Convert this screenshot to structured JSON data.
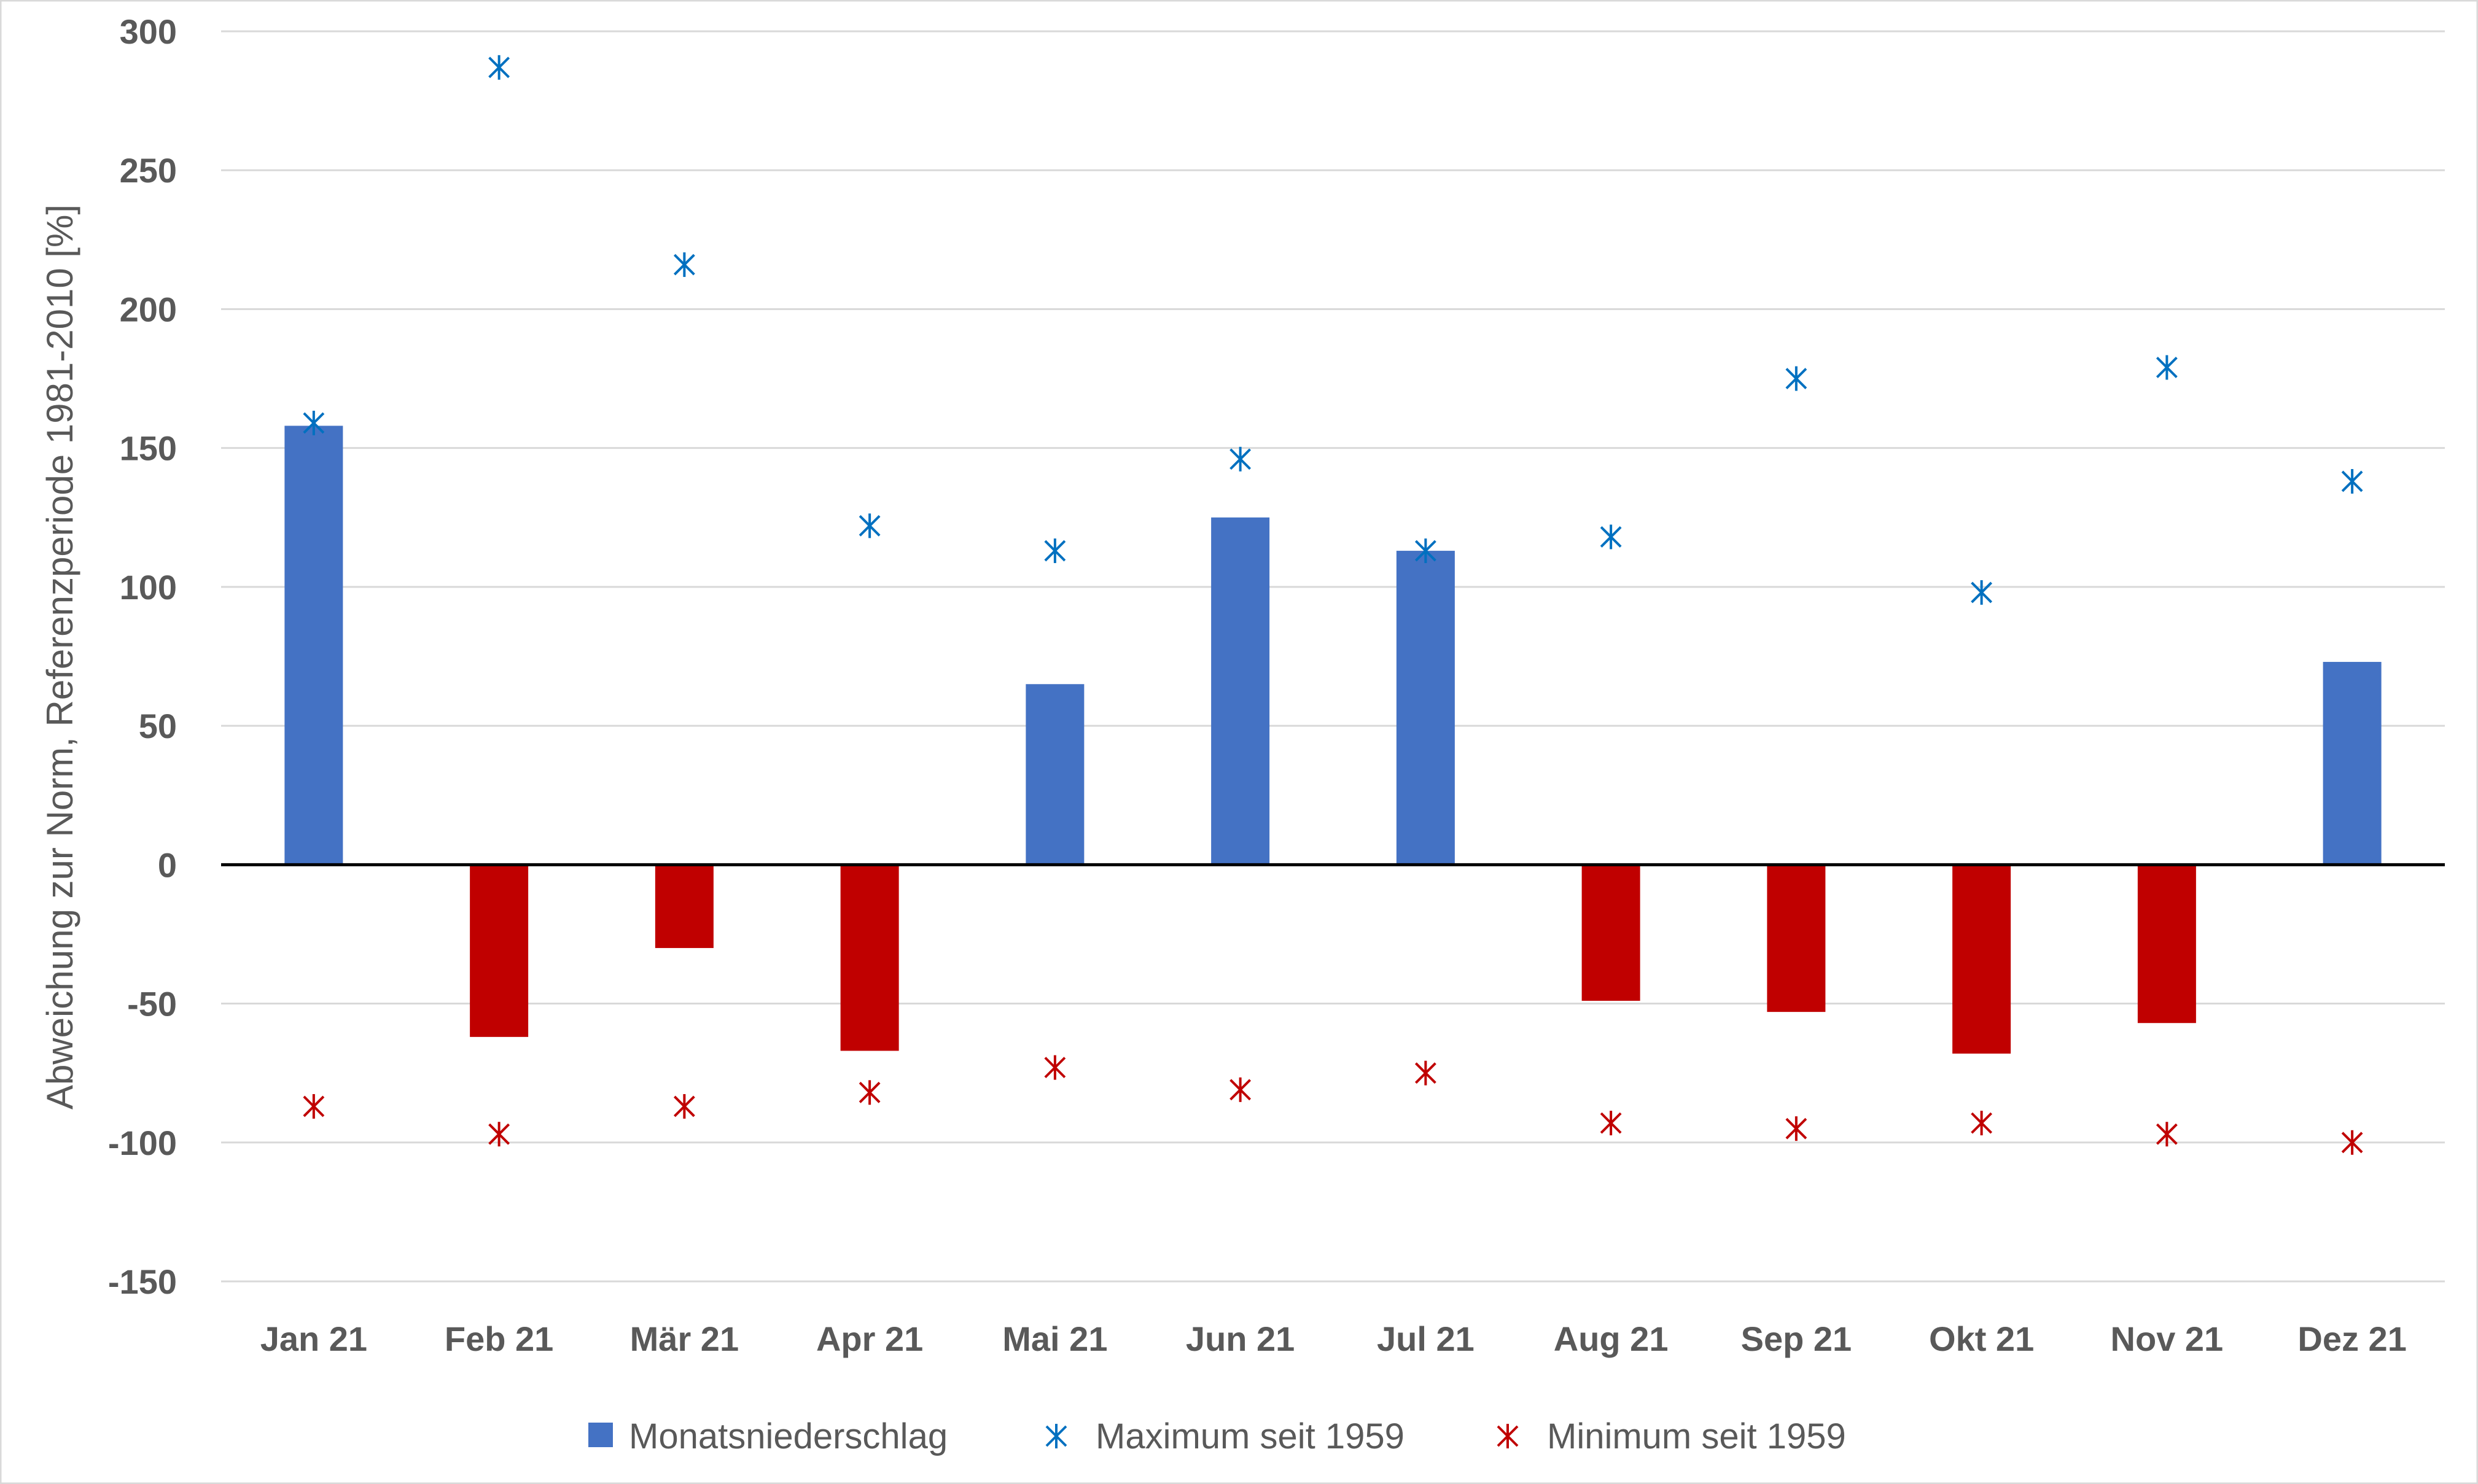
{
  "chart_data": {
    "type": "bar",
    "title": "",
    "xlabel": "",
    "ylabel": "Abweichung zur Norm, Referenzperiode 1981-2010 [%]",
    "ylim": [
      -150,
      300
    ],
    "yticks": [
      300,
      250,
      200,
      150,
      100,
      50,
      0,
      -50,
      -100,
      -150
    ],
    "grid": true,
    "legend_position": "bottom",
    "categories": [
      "Jan 21",
      "Feb 21",
      "Mär 21",
      "Apr 21",
      "Mai 21",
      "Jun 21",
      "Jul 21",
      "Aug 21",
      "Sep 21",
      "Okt 21",
      "Nov 21",
      "Dez 21"
    ],
    "series": [
      {
        "name": "Monatsniederschlag",
        "type": "bar",
        "color_positive": "#4472C4",
        "color_negative": "#C00000",
        "values": [
          158,
          -62,
          -30,
          -67,
          65,
          125,
          113,
          -49,
          -53,
          -68,
          -57,
          73
        ]
      },
      {
        "name": "Maximum seit 1959",
        "type": "scatter",
        "marker": "asterisk",
        "color": "#0070C0",
        "values": [
          159,
          287,
          216,
          122,
          113,
          146,
          113,
          118,
          175,
          98,
          179,
          138
        ]
      },
      {
        "name": "Minimum seit 1959",
        "type": "scatter",
        "marker": "asterisk",
        "color": "#C00000",
        "values": [
          -87,
          -97,
          -87,
          -82,
          -73,
          -81,
          -75,
          -93,
          -95,
          -93,
          -97,
          -100
        ]
      }
    ]
  }
}
